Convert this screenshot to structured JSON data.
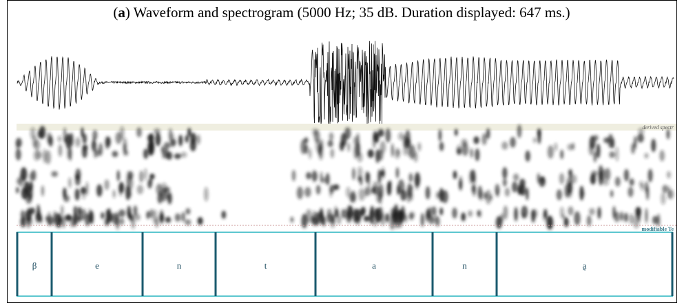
{
  "header": {
    "open": "(",
    "letter": "a",
    "rest": ") Waveform and spectrogram (5000 Hz; 35 dB. Duration displayed: 647 ms.)"
  },
  "tiers": {
    "spectrogram_label": "derived spectr",
    "text_label": "modifiable Te"
  },
  "segments": [
    "β",
    "e",
    "n",
    "t",
    "a",
    "n",
    "a̰"
  ]
}
